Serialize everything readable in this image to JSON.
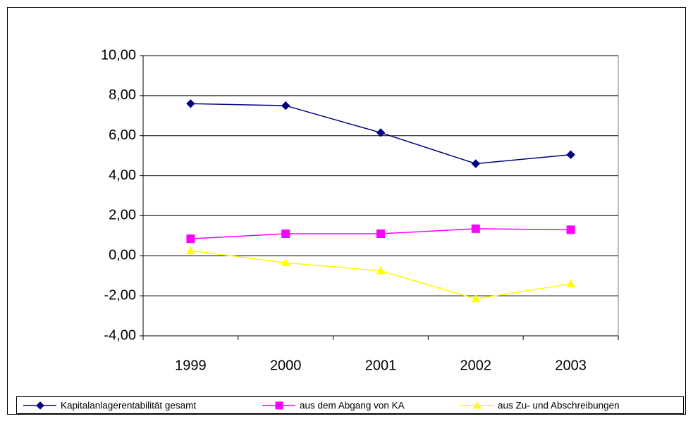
{
  "chart_data": {
    "type": "line",
    "categories": [
      "1999",
      "2000",
      "2001",
      "2002",
      "2003"
    ],
    "series": [
      {
        "name": "Kapitalanlagerentabilität gesamt",
        "color": "#000080",
        "marker": "diamond",
        "values": [
          7.6,
          7.5,
          6.15,
          4.6,
          5.05
        ]
      },
      {
        "name": "aus dem Abgang von KA",
        "color": "#ff00ff",
        "marker": "square",
        "values": [
          0.85,
          1.1,
          1.1,
          1.35,
          1.3
        ]
      },
      {
        "name": "aus Zu- und Abschreibungen",
        "color": "#ffff00",
        "marker": "triangle",
        "values": [
          0.25,
          -0.35,
          -0.75,
          -2.15,
          -1.4
        ]
      }
    ],
    "ylim": [
      -4,
      10
    ],
    "yticks": [
      {
        "value": -4,
        "label": "-4,00"
      },
      {
        "value": -2,
        "label": "-2,00"
      },
      {
        "value": 0,
        "label": "0,00"
      },
      {
        "value": 2,
        "label": "2,00"
      },
      {
        "value": 4,
        "label": "4,00"
      },
      {
        "value": 6,
        "label": "6,00"
      },
      {
        "value": 8,
        "label": "8,00"
      },
      {
        "value": 10,
        "label": "10,00"
      }
    ],
    "grid": true,
    "legend": "bottom"
  }
}
